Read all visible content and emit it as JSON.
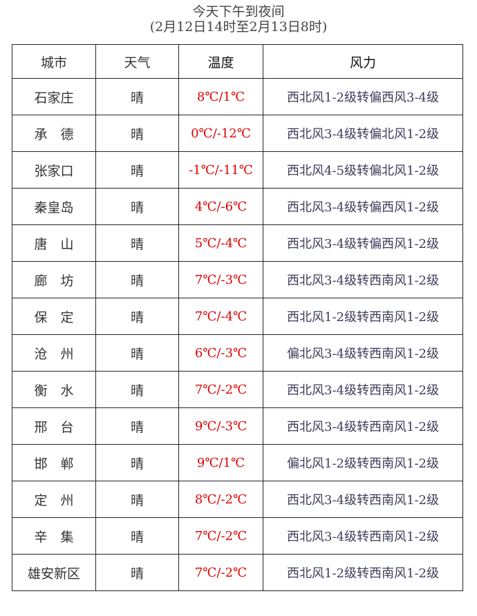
{
  "title": "今天下午到夜间",
  "subtitle": "(2月12日14时至2月13日8时)",
  "headers": [
    "城市",
    "天气",
    "温度",
    "风力"
  ],
  "rows": [
    [
      "石家庄",
      "晴",
      "8℃/1℃",
      "西北风1-2级转偏西风3-4级"
    ],
    [
      "承　德",
      "晴",
      "0℃/-12℃",
      "西北风3-4级转偏北风1-2级"
    ],
    [
      "张家口",
      "晴",
      "-1℃/-11℃",
      "西北风4-5级转偏北风1-2级"
    ],
    [
      "秦皇岛",
      "晴",
      "4℃/-6℃",
      "西北风3-4级转偏西风1-2级"
    ],
    [
      "唐　山",
      "晴",
      "5℃/-4℃",
      "西北风3-4级转偏西风1-2级"
    ],
    [
      "廊　坊",
      "晴",
      "7℃/-3℃",
      "西北风3-4级转西南风1-2级"
    ],
    [
      "保　定",
      "晴",
      "7℃/-4℃",
      "西北风1-2级转西南风1-2级"
    ],
    [
      "沧　州",
      "晴",
      "6℃/-3℃",
      "偏北风3-4级转西南风1-2级"
    ],
    [
      "衡　水",
      "晴",
      "7℃/-2℃",
      "西北风3-4级转西南风1-2级"
    ],
    [
      "邢　台",
      "晴",
      "9℃/-3℃",
      "西北风3-4级转西南风1-2级"
    ],
    [
      "邯　郸",
      "晴",
      "9℃/1℃",
      "偏北风1-2级转西南风1-2级"
    ],
    [
      "定　州",
      "晴",
      "8℃/-2℃",
      "西北风3-4级转西南风1-2级"
    ],
    [
      "辛　集",
      "晴",
      "7℃/-2℃",
      "西北风3-4级转西南风1-2级"
    ],
    [
      "雄安新区",
      "晴",
      "7℃/-2℃",
      "西北风1-2级转西南风1-2级"
    ]
  ],
  "colors": {
    "temperature": "#dd0000",
    "wind": "#3c3c5a"
  }
}
